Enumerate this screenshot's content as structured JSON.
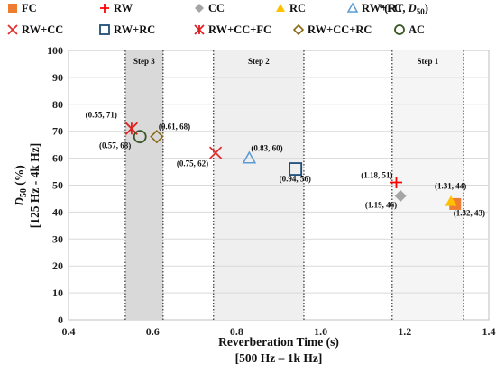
{
  "chart_data": {
    "type": "scatter",
    "xlabel": "Reverberation Time (s)",
    "xlabel_sub": "[500 Hz – 1k Hz]",
    "ylabel_main": "D",
    "ylabel_subscript": "50",
    "ylabel_unit": " (%)",
    "ylabel_range": "[125 Hz - 4k Hz]",
    "xlim": [
      0.4,
      1.4
    ],
    "ylim": [
      0,
      100
    ],
    "x_ticks": [
      "0.4",
      "0.6",
      "0.8",
      "1.0",
      "1.2",
      "1.4"
    ],
    "y_ticks": [
      "0",
      "10",
      "20",
      "30",
      "40",
      "50",
      "60",
      "70",
      "80",
      "90",
      "100"
    ],
    "grid": "horizontal",
    "legend_placement": "top",
    "legend_note": {
      "prefix": "*(RT, ",
      "main": "D",
      "sub": "50",
      "suffix": ")"
    },
    "steps": [
      {
        "label": "Step 3",
        "x_range": [
          0.535,
          0.625
        ],
        "color": "#d9d9d9"
      },
      {
        "label": "Step 2",
        "x_range": [
          0.745,
          0.96
        ],
        "color": "#efefef"
      },
      {
        "label": "Step 1",
        "x_range": [
          1.17,
          1.34
        ],
        "color": "#f5f5f5"
      }
    ],
    "series": [
      {
        "name": "FC",
        "marker": "square-filled",
        "color": "#ED7D31",
        "x": 1.32,
        "y": 43,
        "label": "(1.32, 43)"
      },
      {
        "name": "RW",
        "marker": "plus",
        "color": "#FF0000",
        "x": 1.18,
        "y": 51,
        "label": "(1.18, 51)"
      },
      {
        "name": "CC",
        "marker": "diamond-filled",
        "color": "#A5A5A5",
        "x": 1.19,
        "y": 46,
        "label": "(1.19, 46)"
      },
      {
        "name": "RC",
        "marker": "triangle-filled",
        "color": "#FFC000",
        "x": 1.31,
        "y": 44,
        "label": "(1.31, 44)"
      },
      {
        "name": "RW+FC",
        "marker": "triangle-open",
        "color": "#5B9BD5",
        "x": 0.83,
        "y": 60,
        "label": "(0.83, 60)"
      },
      {
        "name": "RW+CC",
        "marker": "x",
        "color": "#E03030",
        "x": 0.75,
        "y": 62,
        "label": "(0.75, 62)"
      },
      {
        "name": "RW+RC",
        "marker": "square-open",
        "color": "#1F4E79",
        "x": 0.94,
        "y": 56,
        "label": "(0.94, 56)"
      },
      {
        "name": "RW+CC+FC",
        "marker": "asterisk",
        "color": "#E02020",
        "x": 0.55,
        "y": 71,
        "label": "(0.55, 71)"
      },
      {
        "name": "RW+CC+RC",
        "marker": "diamond-open",
        "color": "#8B6914",
        "x": 0.61,
        "y": 68,
        "label": "(0.61, 68)"
      },
      {
        "name": "AC",
        "marker": "circle-open",
        "color": "#375623",
        "x": 0.57,
        "y": 68,
        "label": "(0.57, 68)"
      }
    ]
  }
}
